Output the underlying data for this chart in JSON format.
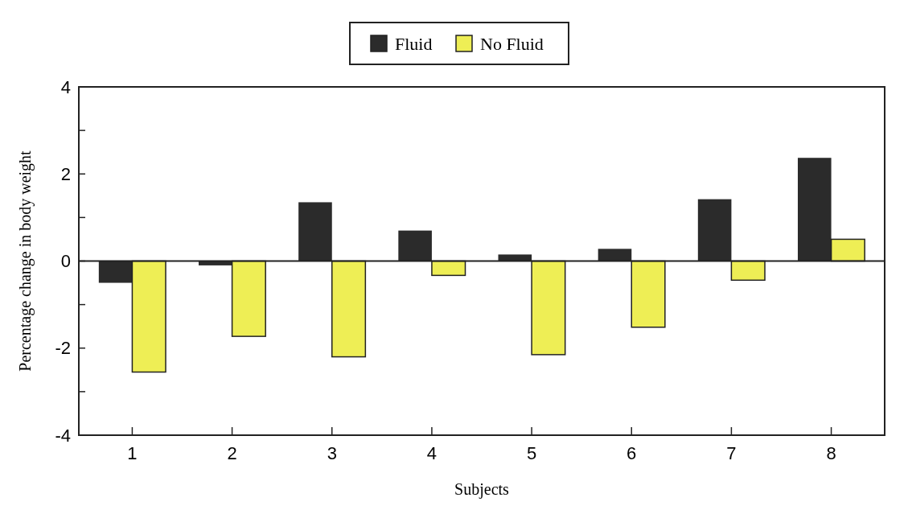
{
  "chart_data": {
    "type": "bar",
    "xlabel": "Subjects",
    "ylabel": "Percentage change in body weight",
    "categories": [
      "1",
      "2",
      "3",
      "4",
      "5",
      "6",
      "7",
      "8"
    ],
    "series": [
      {
        "name": "Fluid",
        "color": "#2b2b2b",
        "values": [
          -0.5,
          -0.1,
          1.35,
          0.7,
          0.15,
          0.28,
          1.42,
          2.37
        ]
      },
      {
        "name": "No Fluid",
        "color": "#eeee55",
        "values": [
          -2.55,
          -1.73,
          -2.2,
          -0.33,
          -2.15,
          -1.52,
          -0.44,
          0.5
        ]
      }
    ],
    "ylim": [
      -4,
      4
    ],
    "yticks": [
      -4,
      {
        "value": -3,
        "label": null
      },
      -2,
      {
        "value": -1,
        "label": null
      },
      0,
      {
        "value": 1,
        "label": null
      },
      2,
      {
        "value": 3,
        "label": null
      },
      4
    ],
    "legend": "top"
  }
}
